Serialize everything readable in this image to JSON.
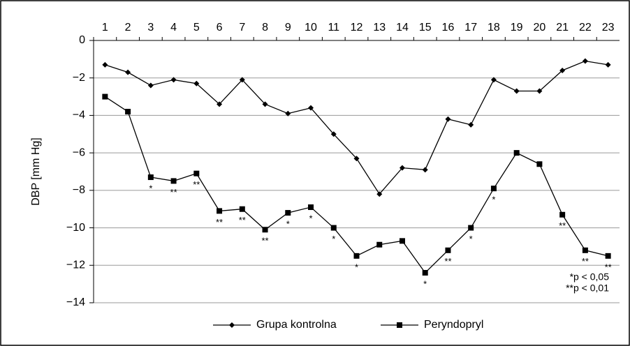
{
  "chart_data": {
    "type": "line",
    "y_label": "DBP [mm Hg]",
    "categories": [
      "1",
      "2",
      "3",
      "4",
      "5",
      "6",
      "7",
      "8",
      "9",
      "10",
      "11",
      "12",
      "13",
      "14",
      "15",
      "16",
      "17",
      "18",
      "19",
      "20",
      "21",
      "22",
      "23"
    ],
    "series": [
      {
        "name": "Grupa kontrolna",
        "color": "#000000",
        "marker": "diamond",
        "values": [
          -1.3,
          -1.7,
          -2.4,
          -2.1,
          -2.3,
          -3.4,
          -2.1,
          -3.4,
          -3.9,
          -3.6,
          -5.0,
          -6.3,
          -8.2,
          -6.8,
          -6.9,
          -4.2,
          -4.5,
          -2.1,
          -2.7,
          -2.7,
          -1.6,
          -1.1,
          -1.3
        ]
      },
      {
        "name": "Peryndopryl",
        "color": "#000000",
        "marker": "square",
        "values": [
          -3.0,
          -3.8,
          -7.3,
          -7.5,
          -7.1,
          -9.1,
          -9.0,
          -10.1,
          -9.2,
          -8.9,
          -10.0,
          -11.5,
          -10.9,
          -10.7,
          -12.4,
          -11.2,
          -10.0,
          -7.9,
          -6.0,
          -6.6,
          -9.3,
          -11.2,
          -11.5
        ]
      }
    ],
    "significance": [
      null,
      null,
      "*",
      "**",
      "**",
      "**",
      "**",
      "**",
      "*",
      "*",
      "*",
      "*",
      null,
      null,
      "*",
      "**",
      "*",
      "*",
      null,
      null,
      "**",
      "**",
      "**"
    ],
    "notes": [
      "*p < 0,05",
      "**p < 0,01"
    ],
    "ylim": [
      -14,
      0
    ],
    "yticks": [
      0,
      {
        "value": -2,
        "label": "−2"
      },
      {
        "value": -4,
        "label": "−4"
      },
      {
        "value": -6,
        "label": "−6"
      },
      {
        "value": -8,
        "label": "−8"
      },
      {
        "value": -10,
        "label": "−10"
      },
      {
        "value": -12,
        "label": "−12"
      },
      {
        "value": -14,
        "label": "−14"
      }
    ],
    "grid": true,
    "legend": "bottom"
  }
}
